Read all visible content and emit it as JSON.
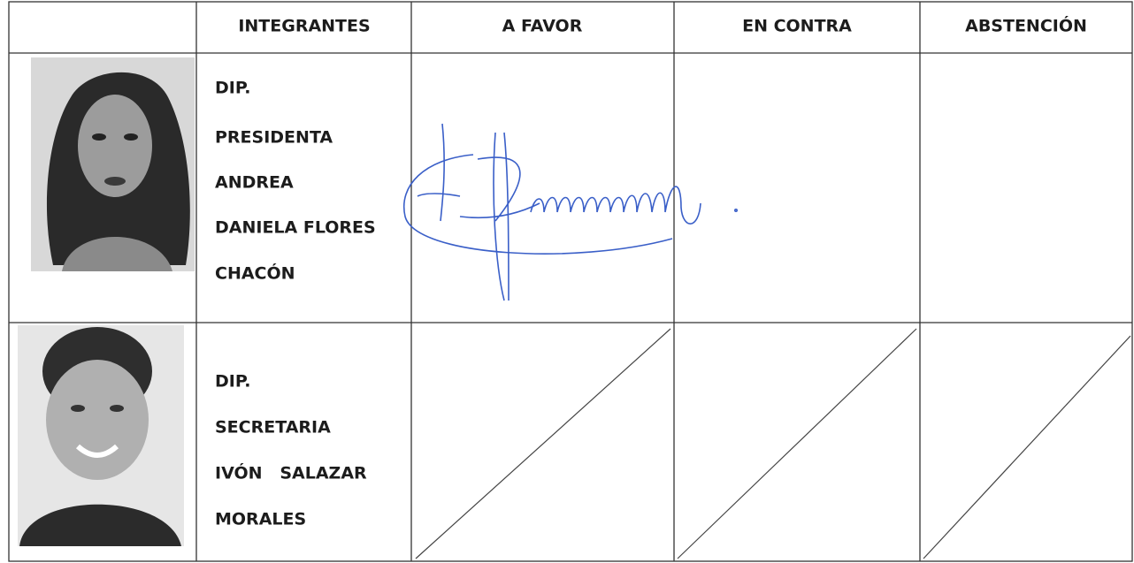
{
  "table": {
    "header": [
      "INTEGRANTES",
      "A FAVOR",
      "EN CONTRA",
      "ABSTENCIÓN"
    ],
    "rows": [
      {
        "name_lines": [
          "DIP.",
          "PRESIDENTA",
          "ANDREA",
          "DANIELA FLORES",
          "CHACÓN"
        ]
      },
      {
        "name_lines": [
          "DIP.",
          "SECRETARIA",
          "IVÓN   SALAZAR",
          "MORALES"
        ]
      }
    ]
  }
}
